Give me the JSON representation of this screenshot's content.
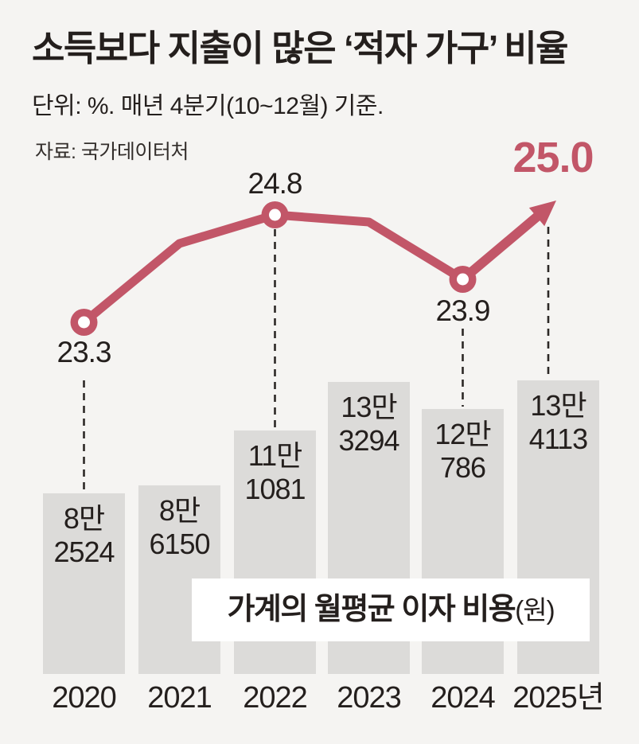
{
  "header": {
    "title": "소득보다 지출이 많은 ‘적자 가구’ 비율",
    "subtitle": "단위: %. 매년 4분기(10~12월) 기준.",
    "source": "자료: 국가데이터처"
  },
  "caption": {
    "main": "가계의 월평균 이자 비용",
    "unit": "(원)"
  },
  "colors": {
    "accent": "#c25668",
    "bar_fill": "#dcdbd9",
    "background": "#f5f4f2",
    "text": "#241f1d",
    "caption_bg": "#ffffff"
  },
  "chart_data": [
    {
      "type": "line",
      "title": "소득보다 지출이 많은 ‘적자 가구’ 비율",
      "unit": "%",
      "note": "매년 4분기(10~12월) 기준",
      "x": [
        "2020",
        "2021",
        "2022",
        "2023",
        "2024",
        "2025"
      ],
      "values": [
        23.3,
        24.4,
        24.8,
        24.7,
        23.9,
        25.0
      ],
      "value_labels": [
        "23.3",
        null,
        "24.8",
        null,
        "23.9",
        "25.0"
      ],
      "label_pos": [
        "below",
        null,
        "above",
        null,
        "below",
        "above"
      ],
      "estimated": [
        false,
        true,
        false,
        true,
        false,
        false
      ],
      "highlight_last": true,
      "legend": "none",
      "grid": false,
      "ylim_hint": [
        23.0,
        25.5
      ]
    },
    {
      "type": "bar",
      "title": "가계의 월평균 이자 비용(원)",
      "unit": "원",
      "categories": [
        "2020",
        "2021",
        "2022",
        "2023",
        "2024",
        "2025년"
      ],
      "values": [
        82524,
        86150,
        111081,
        133294,
        120786,
        134113
      ],
      "bar_labels": [
        [
          "8만",
          "2524"
        ],
        [
          "8만",
          "6150"
        ],
        [
          "11만",
          "1081"
        ],
        [
          "13만",
          "3294"
        ],
        [
          "12만",
          "786"
        ],
        [
          "13만",
          "4113"
        ]
      ],
      "legend": "none",
      "grid": false
    }
  ]
}
